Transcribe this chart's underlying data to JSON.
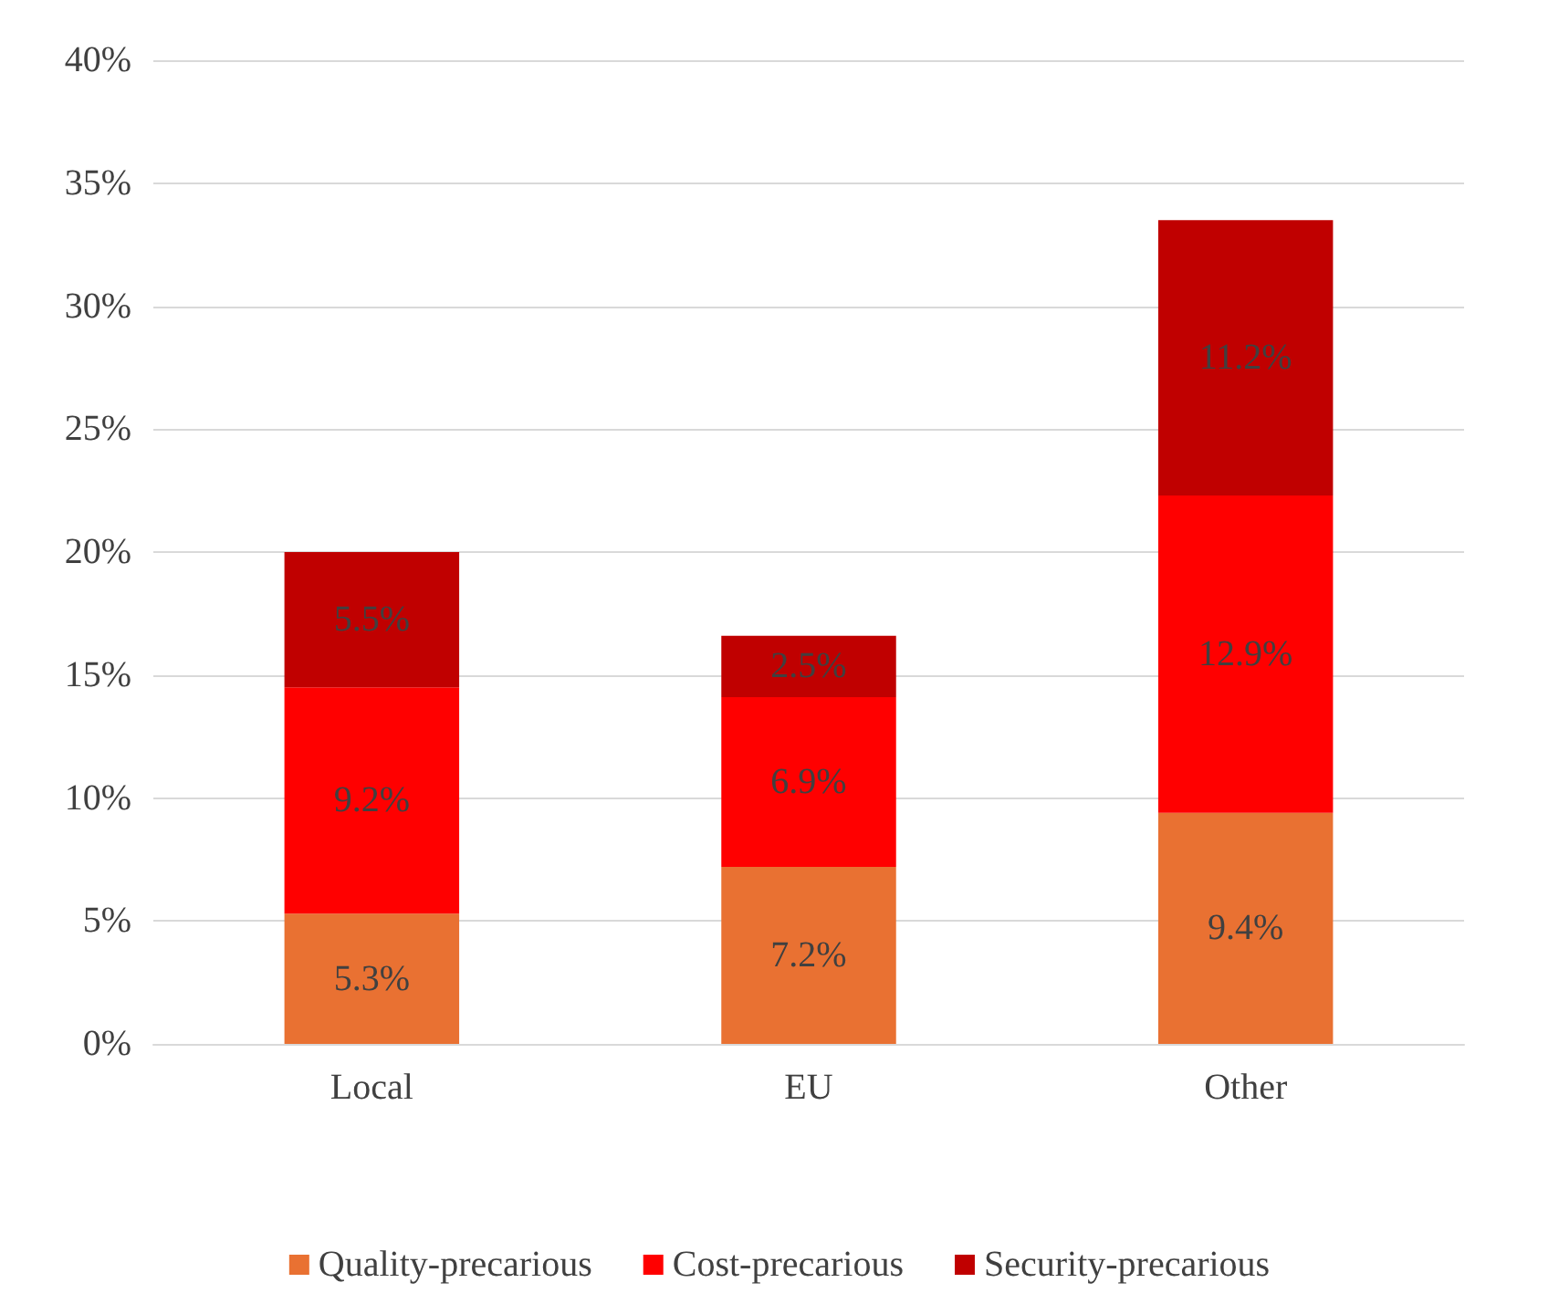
{
  "chart_data": {
    "type": "bar",
    "stacked": true,
    "categories": [
      "Local",
      "EU",
      "Other"
    ],
    "series": [
      {
        "name": "Quality-precarious",
        "color": "#e97132",
        "values": [
          5.3,
          7.2,
          9.4
        ],
        "value_labels": [
          "5.3%",
          "7.2%",
          "9.4%"
        ]
      },
      {
        "name": "Cost-precarious",
        "color": "#ff0000",
        "values": [
          9.2,
          6.9,
          12.9
        ],
        "value_labels": [
          "9.2%",
          "6.9%",
          "12.9%"
        ]
      },
      {
        "name": "Security-precarious",
        "color": "#c00000",
        "values": [
          5.5,
          2.5,
          11.2
        ],
        "value_labels": [
          "5.5%",
          "2.5%",
          "11.2%"
        ]
      }
    ],
    "ylim": [
      0,
      40
    ],
    "yticks": [
      {
        "value": 0,
        "label": "0%"
      },
      {
        "value": 5,
        "label": "5%"
      },
      {
        "value": 10,
        "label": "10%"
      },
      {
        "value": 15,
        "label": "15%"
      },
      {
        "value": 20,
        "label": "20%"
      },
      {
        "value": 25,
        "label": "25%"
      },
      {
        "value": 30,
        "label": "30%"
      },
      {
        "value": 35,
        "label": "35%"
      },
      {
        "value": 40,
        "label": "40%"
      }
    ],
    "grid": "y",
    "legend": "bottom"
  }
}
